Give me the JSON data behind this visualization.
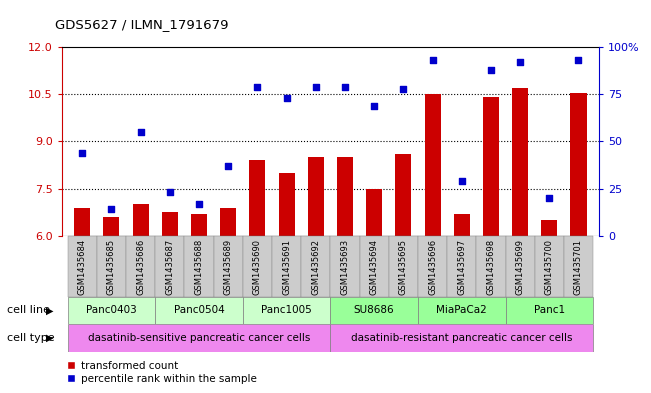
{
  "title": "GDS5627 / ILMN_1791679",
  "samples": [
    "GSM1435684",
    "GSM1435685",
    "GSM1435686",
    "GSM1435687",
    "GSM1435688",
    "GSM1435689",
    "GSM1435690",
    "GSM1435691",
    "GSM1435692",
    "GSM1435693",
    "GSM1435694",
    "GSM1435695",
    "GSM1435696",
    "GSM1435697",
    "GSM1435698",
    "GSM1435699",
    "GSM1435700",
    "GSM1435701"
  ],
  "bar_values": [
    6.9,
    6.6,
    7.0,
    6.75,
    6.7,
    6.9,
    8.4,
    8.0,
    8.5,
    8.5,
    7.5,
    8.6,
    10.5,
    6.7,
    10.4,
    10.7,
    6.5,
    10.55
  ],
  "dot_values": [
    44,
    14,
    55,
    23,
    17,
    37,
    79,
    73,
    79,
    79,
    69,
    78,
    93,
    29,
    88,
    92,
    20,
    93
  ],
  "ylim_left": [
    6,
    12
  ],
  "ylim_right": [
    0,
    100
  ],
  "yticks_left": [
    6,
    7.5,
    9,
    10.5,
    12
  ],
  "yticks_right": [
    0,
    25,
    50,
    75,
    100
  ],
  "bar_color": "#cc0000",
  "dot_color": "#0000cc",
  "cell_line_groups": [
    {
      "label": "Panc0403",
      "start": 0,
      "end": 3,
      "color": "#ccffcc"
    },
    {
      "label": "Panc0504",
      "start": 3,
      "end": 6,
      "color": "#ccffcc"
    },
    {
      "label": "Panc1005",
      "start": 6,
      "end": 9,
      "color": "#ccffcc"
    },
    {
      "label": "SU8686",
      "start": 9,
      "end": 12,
      "color": "#99ff99"
    },
    {
      "label": "MiaPaCa2",
      "start": 12,
      "end": 15,
      "color": "#99ff99"
    },
    {
      "label": "Panc1",
      "start": 15,
      "end": 18,
      "color": "#99ff99"
    }
  ],
  "cell_type_groups": [
    {
      "label": "dasatinib-sensitive pancreatic cancer cells",
      "start": 0,
      "end": 9,
      "color": "#ee88ee"
    },
    {
      "label": "dasatinib-resistant pancreatic cancer cells",
      "start": 9,
      "end": 18,
      "color": "#ee88ee"
    }
  ],
  "cell_line_label": "cell line",
  "cell_type_label": "cell type",
  "legend_bar_label": "transformed count",
  "legend_dot_label": "percentile rank within the sample",
  "bar_width": 0.55,
  "left_axis_color": "#cc0000",
  "right_axis_color": "#0000cc",
  "xtick_bg_color": "#cccccc"
}
